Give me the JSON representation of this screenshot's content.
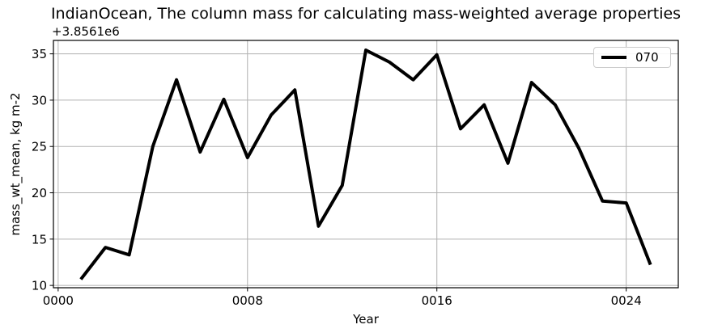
{
  "chart_data": {
    "type": "line",
    "title": "IndianOcean, The column mass for calculating mass-weighted average properties",
    "xlabel": "Year",
    "ylabel": "mass_wt_mean, kg m-2",
    "y_offset_text": "+3.8561e6",
    "x": [
      1,
      2,
      3,
      4,
      5,
      6,
      7,
      8,
      9,
      10,
      11,
      12,
      13,
      14,
      15,
      16,
      17,
      18,
      19,
      20,
      21,
      22,
      23,
      24,
      25
    ],
    "series": [
      {
        "name": "070",
        "color": "#000000",
        "values": [
          10.8,
          14.1,
          13.3,
          25.0,
          32.2,
          24.4,
          30.1,
          23.8,
          28.4,
          31.1,
          16.4,
          20.8,
          35.4,
          34.1,
          32.2,
          34.9,
          26.9,
          29.5,
          23.2,
          31.9,
          29.5,
          24.8,
          19.1,
          18.9,
          12.4
        ]
      }
    ],
    "xlim": [
      -0.2,
      26.2
    ],
    "ylim": [
      9.75,
      36.45
    ],
    "xticks": {
      "values": [
        0,
        8,
        16,
        24
      ],
      "labels": [
        "0000",
        "0008",
        "0016",
        "0024"
      ]
    },
    "yticks": {
      "values": [
        10,
        15,
        20,
        25,
        30,
        35
      ],
      "labels": [
        "10",
        "15",
        "20",
        "25",
        "30",
        "35"
      ]
    },
    "grid": true,
    "legend_position": "upper right",
    "colors": {
      "line": "#000000",
      "grid": "#b0b0b0",
      "spine": "#000000",
      "background": "#ffffff",
      "legend_border": "#cccccc"
    }
  }
}
